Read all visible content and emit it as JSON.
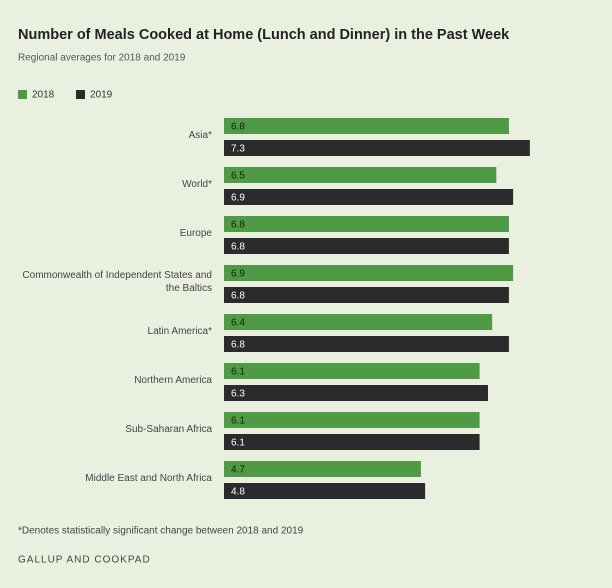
{
  "chart_data": {
    "type": "bar",
    "orientation": "horizontal",
    "title": "Number of Meals Cooked at Home (Lunch and Dinner) in the Past Week",
    "subtitle": "Regional averages for 2018 and 2019",
    "categories": [
      "Asia*",
      "World*",
      "Europe",
      "Commonwealth of Independent States and the Baltics",
      "Latin America*",
      "Northern America",
      "Sub-Saharan Africa",
      "Middle East and North Africa"
    ],
    "series": [
      {
        "name": "2018",
        "color": "#4f9a44",
        "values": [
          6.8,
          6.5,
          6.8,
          6.9,
          6.4,
          6.1,
          6.1,
          4.7
        ]
      },
      {
        "name": "2019",
        "color": "#2b2b2b",
        "values": [
          7.3,
          6.9,
          6.8,
          6.8,
          6.8,
          6.3,
          6.1,
          4.8
        ]
      }
    ],
    "footnote": "*Denotes statistically significant change between 2018 and 2019",
    "source": "GALLUP AND COOKPAD"
  }
}
